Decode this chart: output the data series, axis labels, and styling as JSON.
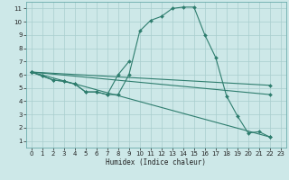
{
  "xlabel": "Humidex (Indice chaleur)",
  "bg_color": "#cde8e8",
  "grid_color": "#a8cece",
  "line_color": "#2e7d6e",
  "xlim": [
    -0.5,
    23.5
  ],
  "ylim": [
    0.5,
    11.5
  ],
  "xticks": [
    0,
    1,
    2,
    3,
    4,
    5,
    6,
    7,
    8,
    9,
    10,
    11,
    12,
    13,
    14,
    15,
    16,
    17,
    18,
    19,
    20,
    21,
    22,
    23
  ],
  "yticks": [
    1,
    2,
    3,
    4,
    5,
    6,
    7,
    8,
    9,
    10,
    11
  ],
  "s1x": [
    0,
    1,
    2,
    3,
    4,
    5,
    6,
    7,
    8,
    9,
    10,
    11,
    12,
    13,
    14,
    15,
    16,
    17,
    18,
    19,
    20,
    21,
    22
  ],
  "s1y": [
    6.2,
    5.9,
    5.6,
    5.5,
    5.3,
    4.7,
    4.7,
    4.5,
    4.5,
    6.0,
    9.3,
    10.1,
    10.4,
    11.0,
    11.1,
    11.1,
    9.0,
    7.3,
    4.4,
    2.9,
    1.6,
    1.7,
    1.3
  ],
  "s2x": [
    0,
    1,
    2,
    3,
    4,
    5,
    6,
    7,
    8,
    9
  ],
  "s2y": [
    6.2,
    5.9,
    5.6,
    5.5,
    5.3,
    4.7,
    4.7,
    4.5,
    6.0,
    7.0
  ],
  "s3x": [
    0,
    22
  ],
  "s3y": [
    6.2,
    1.3
  ],
  "s4x": [
    0,
    22
  ],
  "s4y": [
    6.2,
    4.5
  ],
  "s5x": [
    0,
    22
  ],
  "s5y": [
    6.2,
    5.2
  ],
  "marker": "D",
  "markersize": 2.0,
  "linewidth": 0.8,
  "xlabel_fontsize": 5.5,
  "tick_fontsize": 5
}
